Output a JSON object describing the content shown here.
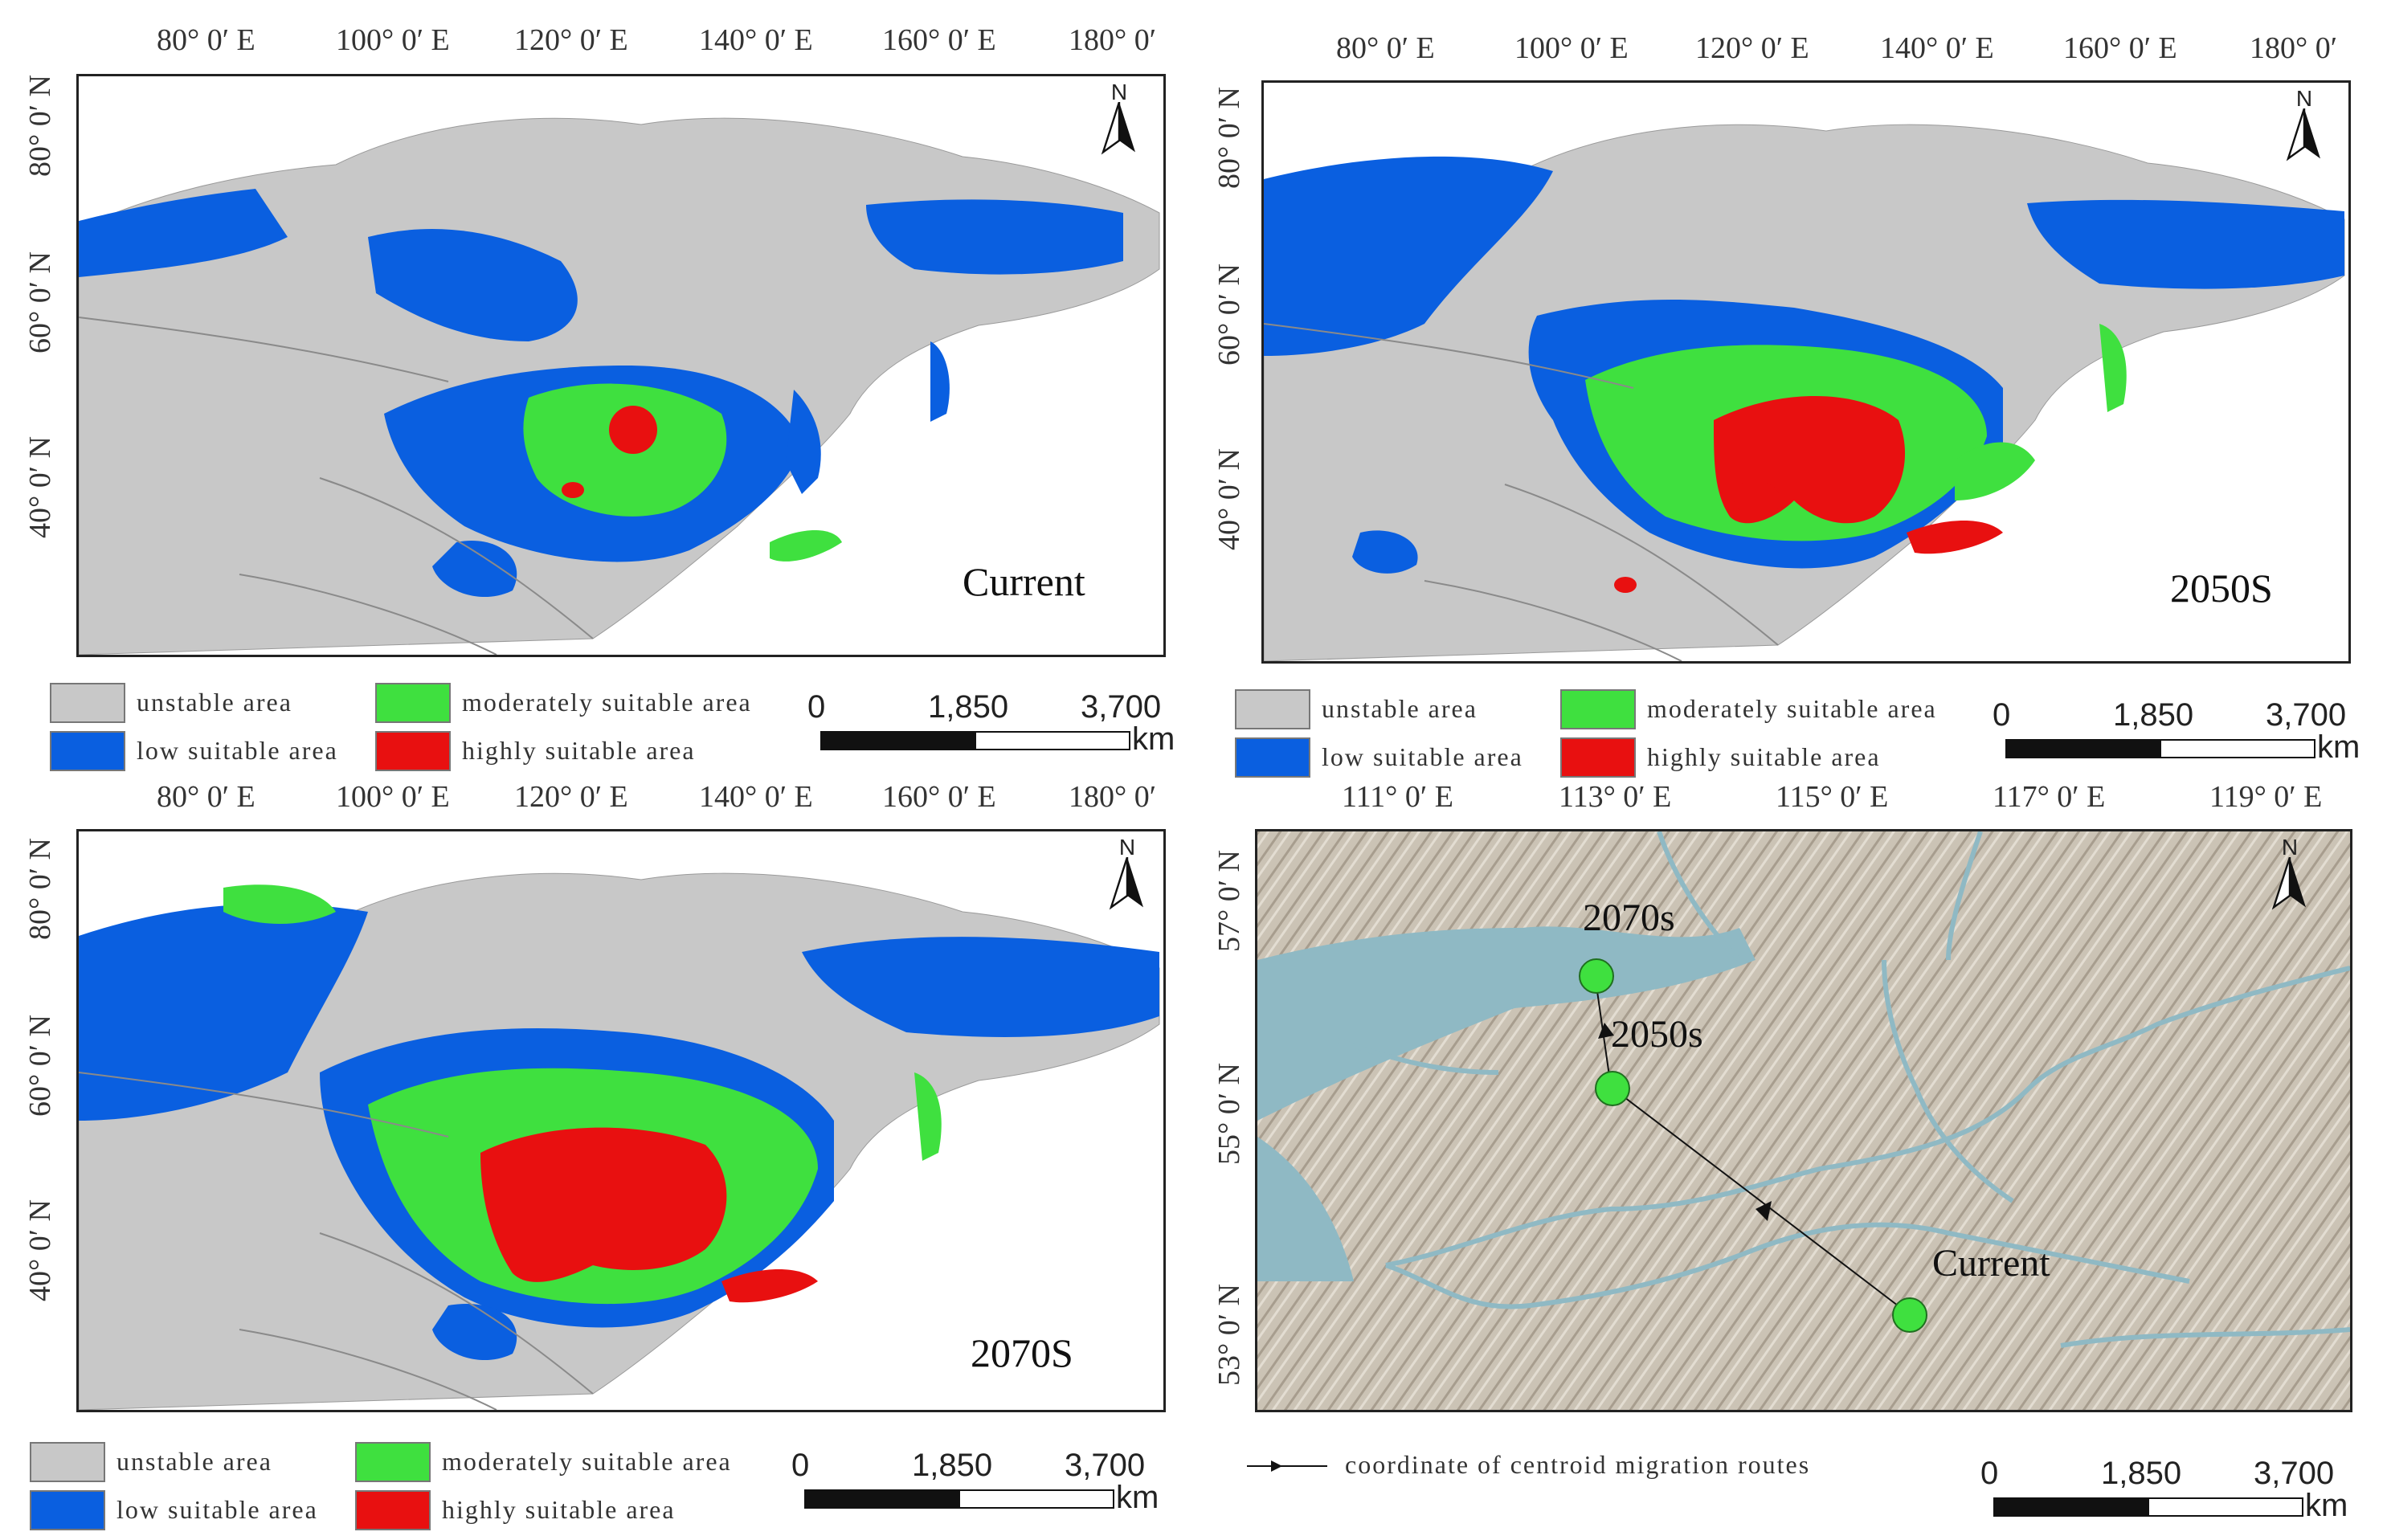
{
  "colors": {
    "unstable": "#c8c8c8",
    "low": "#0a5fe0",
    "moderate": "#3fe03f",
    "high": "#e81010",
    "relief": "#c9c0b2",
    "water": "#8fb9c4"
  },
  "legend": {
    "unstable": "unstable area",
    "low": "low suitable area",
    "moderate": "moderately suitable area",
    "high": "highly suitable area",
    "route": "coordinate of centroid migration routes"
  },
  "scale": {
    "zero": "0",
    "mid": "1,850",
    "max": "3,700",
    "unit": "km"
  },
  "north_label": "N",
  "panels": [
    {
      "title": "Current",
      "lon_labels": [
        "80° 0′ E",
        "100° 0′ E",
        "120° 0′ E",
        "140° 0′ E",
        "160° 0′ E",
        "180° 0′"
      ],
      "lat_labels": [
        "80° 0′ N",
        "60° 0′ N",
        "40° 0′ N"
      ]
    },
    {
      "title": "2050S",
      "lon_labels": [
        "80° 0′ E",
        "100° 0′ E",
        "120° 0′ E",
        "140° 0′ E",
        "160° 0′ E",
        "180° 0′"
      ],
      "lat_labels": [
        "80° 0′ N",
        "60° 0′ N",
        "40° 0′ N"
      ]
    },
    {
      "title": "2070S",
      "lon_labels": [
        "80° 0′ E",
        "100° 0′ E",
        "120° 0′ E",
        "140° 0′ E",
        "160° 0′ E",
        "180° 0′"
      ],
      "lat_labels": [
        "80° 0′ N",
        "60° 0′ N",
        "40° 0′ N"
      ]
    },
    {
      "lon_labels": [
        "111° 0′ E",
        "113° 0′ E",
        "115° 0′ E",
        "117° 0′ E",
        "119° 0′ E"
      ],
      "lat_labels": [
        "57° 0′ N",
        "55° 0′ N",
        "53° 0′ N"
      ],
      "points": [
        {
          "label": "2070s"
        },
        {
          "label": "2050s"
        },
        {
          "label": "Current"
        }
      ]
    }
  ]
}
